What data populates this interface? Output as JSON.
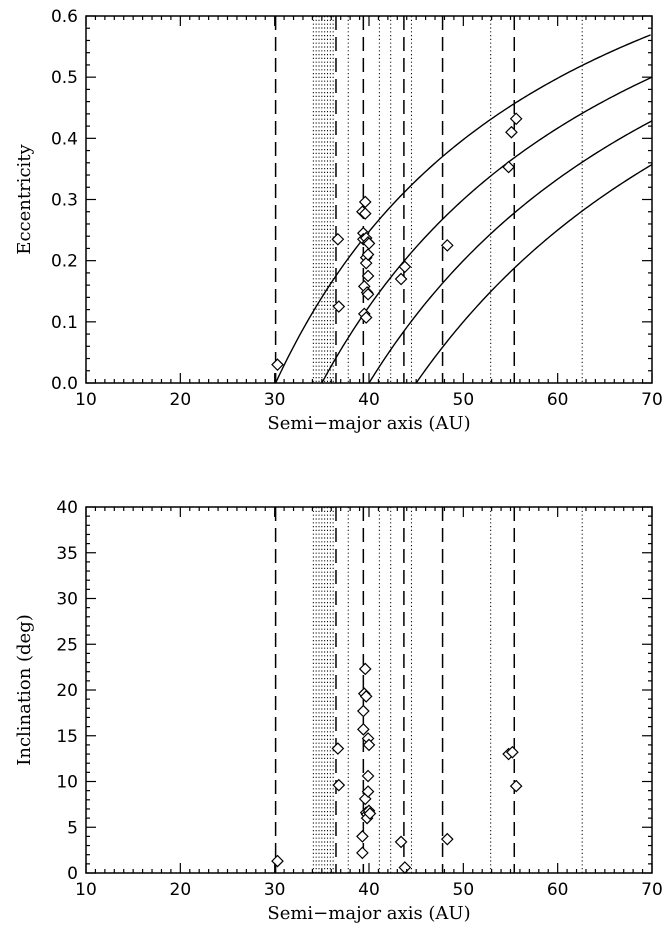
{
  "chart_data": [
    {
      "type": "scatter",
      "title": "",
      "xlabel": "Semi−major axis (AU)",
      "ylabel": "Eccentricity",
      "xlim": [
        10,
        70
      ],
      "ylim": [
        0,
        0.6
      ],
      "xticks": [
        10,
        20,
        30,
        40,
        50,
        60,
        70
      ],
      "xtick_labels": [
        "10",
        "20",
        "30",
        "40",
        "50",
        "60",
        "70"
      ],
      "yticks": [
        0.0,
        0.1,
        0.2,
        0.3,
        0.4,
        0.5,
        0.6
      ],
      "ytick_labels": [
        "0.0",
        "0.1",
        "0.2",
        "0.3",
        "0.4",
        "0.5",
        "0.6"
      ],
      "marker": "diamond",
      "dashed_lines_x": [
        30.1,
        36.5,
        39.4,
        43.7,
        47.8,
        55.4
      ],
      "dotted_lines_x": [
        34.1,
        34.4,
        34.7,
        35.0,
        35.3,
        35.6,
        35.9,
        36.2,
        37.8,
        41.1,
        42.3,
        44.5,
        52.9,
        62.6
      ],
      "perihelion_curves_q": [
        30.1,
        35.0,
        40.0,
        45.0
      ],
      "points": [
        {
          "x": 30.3,
          "y": 0.03
        },
        {
          "x": 36.7,
          "y": 0.235
        },
        {
          "x": 36.8,
          "y": 0.125
        },
        {
          "x": 39.3,
          "y": 0.28
        },
        {
          "x": 39.4,
          "y": 0.245
        },
        {
          "x": 39.4,
          "y": 0.235
        },
        {
          "x": 39.5,
          "y": 0.158
        },
        {
          "x": 39.5,
          "y": 0.113
        },
        {
          "x": 39.6,
          "y": 0.296
        },
        {
          "x": 39.6,
          "y": 0.277
        },
        {
          "x": 39.7,
          "y": 0.237
        },
        {
          "x": 39.7,
          "y": 0.205
        },
        {
          "x": 39.7,
          "y": 0.196
        },
        {
          "x": 39.7,
          "y": 0.107
        },
        {
          "x": 39.8,
          "y": 0.148
        },
        {
          "x": 39.9,
          "y": 0.23
        },
        {
          "x": 39.9,
          "y": 0.21
        },
        {
          "x": 39.9,
          "y": 0.175
        },
        {
          "x": 39.9,
          "y": 0.145
        },
        {
          "x": 40.0,
          "y": 0.228
        },
        {
          "x": 43.4,
          "y": 0.17
        },
        {
          "x": 43.8,
          "y": 0.19
        },
        {
          "x": 48.3,
          "y": 0.225
        },
        {
          "x": 54.8,
          "y": 0.353
        },
        {
          "x": 55.1,
          "y": 0.41
        },
        {
          "x": 55.6,
          "y": 0.432
        }
      ]
    },
    {
      "type": "scatter",
      "title": "",
      "xlabel": "Semi−major axis (AU)",
      "ylabel": "Inclination (deg)",
      "xlim": [
        10,
        70
      ],
      "ylim": [
        0,
        40
      ],
      "xticks": [
        10,
        20,
        30,
        40,
        50,
        60,
        70
      ],
      "xtick_labels": [
        "10",
        "20",
        "30",
        "40",
        "50",
        "60",
        "70"
      ],
      "yticks": [
        0,
        5,
        10,
        15,
        20,
        25,
        30,
        35,
        40
      ],
      "ytick_labels": [
        "0",
        "5",
        "10",
        "15",
        "20",
        "25",
        "30",
        "35",
        "40"
      ],
      "marker": "diamond",
      "dashed_lines_x": [
        30.1,
        36.5,
        39.4,
        43.7,
        47.8,
        55.4
      ],
      "dotted_lines_x": [
        34.1,
        34.4,
        34.7,
        35.0,
        35.3,
        35.6,
        35.9,
        36.2,
        37.8,
        41.1,
        42.3,
        44.5,
        52.9,
        62.6
      ],
      "points": [
        {
          "x": 30.3,
          "y": 1.3
        },
        {
          "x": 36.7,
          "y": 13.6
        },
        {
          "x": 36.8,
          "y": 9.6
        },
        {
          "x": 39.3,
          "y": 4.0
        },
        {
          "x": 39.3,
          "y": 2.2
        },
        {
          "x": 39.4,
          "y": 17.7
        },
        {
          "x": 39.4,
          "y": 15.7
        },
        {
          "x": 39.5,
          "y": 19.6
        },
        {
          "x": 39.6,
          "y": 22.3
        },
        {
          "x": 39.6,
          "y": 8.1
        },
        {
          "x": 39.7,
          "y": 19.3
        },
        {
          "x": 39.7,
          "y": 6.6
        },
        {
          "x": 39.8,
          "y": 6.4
        },
        {
          "x": 39.8,
          "y": 6.0
        },
        {
          "x": 39.9,
          "y": 14.7
        },
        {
          "x": 39.9,
          "y": 10.6
        },
        {
          "x": 39.9,
          "y": 8.9
        },
        {
          "x": 40.0,
          "y": 14.0
        },
        {
          "x": 40.0,
          "y": 6.8
        },
        {
          "x": 40.1,
          "y": 6.5
        },
        {
          "x": 43.4,
          "y": 3.4
        },
        {
          "x": 43.8,
          "y": 0.6
        },
        {
          "x": 48.3,
          "y": 3.7
        },
        {
          "x": 54.8,
          "y": 13.0
        },
        {
          "x": 55.2,
          "y": 13.2
        },
        {
          "x": 55.6,
          "y": 9.5
        }
      ]
    }
  ]
}
